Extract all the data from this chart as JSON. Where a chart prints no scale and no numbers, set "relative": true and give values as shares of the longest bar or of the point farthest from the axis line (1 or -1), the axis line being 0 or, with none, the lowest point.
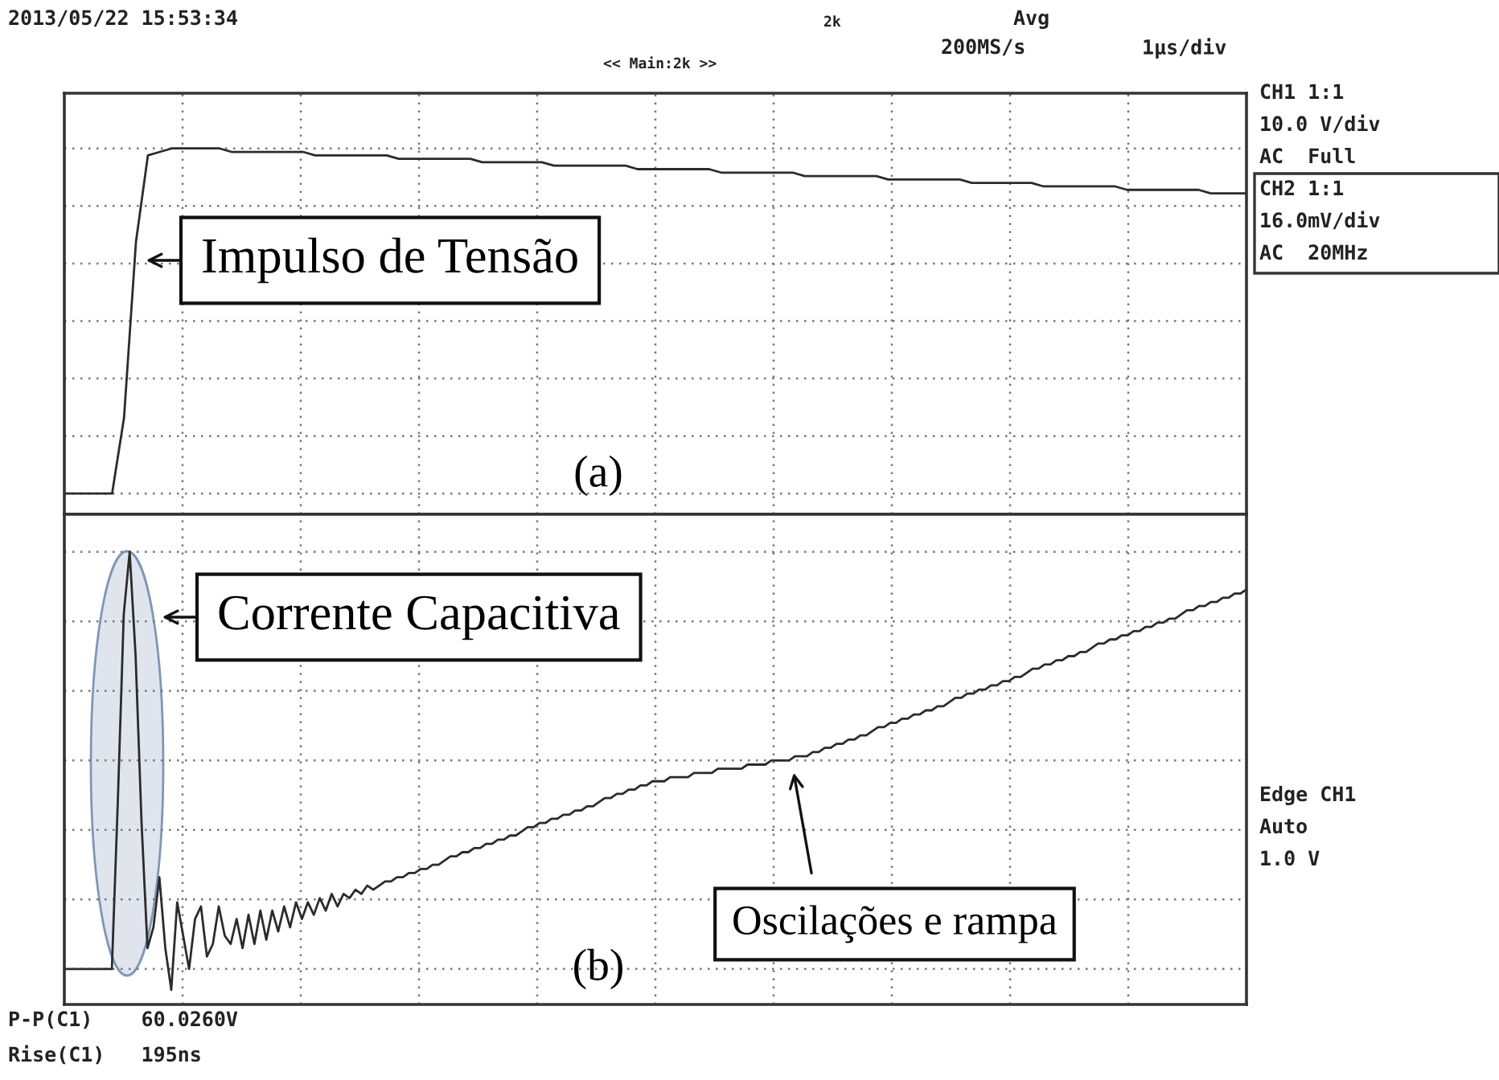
{
  "chart_data": [
    {
      "type": "line",
      "relative": true,
      "tick_labels": false,
      "grid": true,
      "legend": false,
      "marker": "none",
      "line_style": "solid",
      "categories": [
        null,
        null,
        null,
        null,
        null,
        null,
        null,
        null,
        null,
        null,
        null,
        null,
        null,
        null,
        null,
        null,
        null,
        null,
        null,
        null,
        null,
        null,
        null,
        null,
        null,
        null,
        null,
        null,
        null,
        null,
        null,
        null,
        null,
        null,
        null,
        null,
        null,
        null,
        null,
        null,
        null,
        null,
        null,
        null,
        null,
        null,
        null,
        null,
        null,
        null,
        null,
        null,
        null,
        null,
        null,
        null,
        null,
        null,
        null,
        null,
        null,
        null,
        null,
        null,
        null,
        null,
        null,
        null,
        null,
        null,
        null,
        null,
        null,
        null,
        null,
        null,
        null,
        null,
        null,
        null,
        null,
        null,
        null,
        null,
        null,
        null,
        null,
        null,
        null,
        null,
        null,
        null,
        null,
        null,
        null,
        null,
        null,
        null,
        null,
        null
      ],
      "series": [
        {
          "color": "#2b2b2b",
          "values": [
            0,
            0,
            0,
            0,
            0,
            0.22,
            0.73,
            0.98,
            0.99,
            1.0,
            1.0,
            1.0,
            1.0,
            1.0,
            0.99,
            0.99,
            0.99,
            0.99,
            0.99,
            0.99,
            0.99,
            0.98,
            0.98,
            0.98,
            0.98,
            0.98,
            0.98,
            0.98,
            0.97,
            0.97,
            0.97,
            0.97,
            0.97,
            0.97,
            0.97,
            0.96,
            0.96,
            0.96,
            0.96,
            0.96,
            0.96,
            0.95,
            0.95,
            0.95,
            0.95,
            0.95,
            0.95,
            0.95,
            0.94,
            0.94,
            0.94,
            0.94,
            0.94,
            0.94,
            0.94,
            0.93,
            0.93,
            0.93,
            0.93,
            0.93,
            0.93,
            0.93,
            0.92,
            0.92,
            0.92,
            0.92,
            0.92,
            0.92,
            0.92,
            0.91,
            0.91,
            0.91,
            0.91,
            0.91,
            0.91,
            0.91,
            0.9,
            0.9,
            0.9,
            0.9,
            0.9,
            0.9,
            0.89,
            0.89,
            0.89,
            0.89,
            0.89,
            0.89,
            0.89,
            0.88,
            0.88,
            0.88,
            0.88,
            0.88,
            0.88,
            0.88,
            0.87,
            0.87,
            0.87,
            0.87
          ]
        }
      ],
      "annotations": [
        "2013/05/22 15:53:34",
        "2k",
        "Avg",
        "200MS/s",
        "1µs/div",
        "<< Main:2k >>",
        "CH1 1:1",
        "10.0 V/div",
        "AC  Full",
        "CH2 1:1",
        "16.0mV/div",
        "AC  20MHz",
        "Impulso de Tensão",
        "(a)"
      ]
    },
    {
      "type": "line",
      "relative": true,
      "tick_labels": false,
      "grid": true,
      "legend": false,
      "marker": "none",
      "line_style": "solid",
      "categories": [
        null,
        null,
        null,
        null,
        null,
        null,
        null,
        null,
        null,
        null,
        null,
        null,
        null,
        null,
        null,
        null,
        null,
        null,
        null,
        null,
        null,
        null,
        null,
        null,
        null,
        null,
        null,
        null,
        null,
        null,
        null,
        null,
        null,
        null,
        null,
        null,
        null,
        null,
        null,
        null,
        null,
        null,
        null,
        null,
        null,
        null,
        null,
        null,
        null,
        null,
        null,
        null,
        null,
        null,
        null,
        null,
        null,
        null,
        null,
        null,
        null,
        null,
        null,
        null,
        null,
        null,
        null,
        null,
        null,
        null,
        null,
        null,
        null,
        null,
        null,
        null,
        null,
        null,
        null,
        null,
        null,
        null,
        null,
        null,
        null,
        null,
        null,
        null,
        null,
        null,
        null,
        null,
        null,
        null,
        null,
        null,
        null,
        null,
        null,
        null,
        null,
        null,
        null,
        null,
        null,
        null,
        null,
        null,
        null,
        null,
        null,
        null,
        null,
        null,
        null,
        null,
        null,
        null,
        null,
        null,
        null,
        null,
        null,
        null,
        null,
        null,
        null,
        null,
        null,
        null,
        null,
        null,
        null,
        null,
        null,
        null,
        null,
        null,
        null,
        null,
        null,
        null,
        null,
        null,
        null,
        null,
        null,
        null,
        null,
        null,
        null,
        null,
        null,
        null,
        null,
        null,
        null,
        null,
        null,
        null,
        null,
        null,
        null,
        null,
        null,
        null,
        null,
        null,
        null,
        null,
        null,
        null,
        null,
        null,
        null,
        null,
        null,
        null,
        null,
        null,
        null,
        null,
        null,
        null,
        null,
        null,
        null,
        null,
        null,
        null,
        null,
        null,
        null,
        null,
        null,
        null,
        null,
        null,
        null,
        null
      ],
      "series": [
        {
          "color": "#2b2b2b",
          "values": [
            0,
            0,
            0,
            0,
            0,
            0,
            0,
            0,
            0,
            0.4,
            0.85,
            1.0,
            0.75,
            0.35,
            0.05,
            0.1,
            0.22,
            0.05,
            -0.05,
            0.16,
            0.08,
            0,
            0.12,
            0.15,
            0.03,
            0.06,
            0.15,
            0.08,
            0.06,
            0.12,
            0.05,
            0.13,
            0.06,
            0.14,
            0.07,
            0.14,
            0.09,
            0.15,
            0.1,
            0.16,
            0.12,
            0.16,
            0.13,
            0.17,
            0.14,
            0.18,
            0.15,
            0.18,
            0.17,
            0.19,
            0.18,
            0.2,
            0.19,
            0.2,
            0.21,
            0.21,
            0.22,
            0.22,
            0.23,
            0.23,
            0.24,
            0.24,
            0.25,
            0.25,
            0.26,
            0.27,
            0.27,
            0.28,
            0.28,
            0.29,
            0.29,
            0.3,
            0.3,
            0.31,
            0.31,
            0.32,
            0.32,
            0.33,
            0.34,
            0.34,
            0.35,
            0.35,
            0.36,
            0.36,
            0.37,
            0.37,
            0.38,
            0.38,
            0.39,
            0.39,
            0.4,
            0.41,
            0.41,
            0.42,
            0.42,
            0.43,
            0.43,
            0.44,
            0.44,
            0.45,
            0.45,
            0.45,
            0.46,
            0.46,
            0.46,
            0.46,
            0.47,
            0.47,
            0.47,
            0.47,
            0.48,
            0.48,
            0.48,
            0.48,
            0.48,
            0.49,
            0.49,
            0.49,
            0.49,
            0.5,
            0.5,
            0.5,
            0.5,
            0.51,
            0.51,
            0.51,
            0.52,
            0.52,
            0.53,
            0.53,
            0.54,
            0.54,
            0.55,
            0.55,
            0.56,
            0.56,
            0.57,
            0.58,
            0.58,
            0.59,
            0.59,
            0.6,
            0.6,
            0.61,
            0.61,
            0.62,
            0.62,
            0.63,
            0.63,
            0.64,
            0.65,
            0.65,
            0.66,
            0.66,
            0.67,
            0.67,
            0.68,
            0.68,
            0.69,
            0.69,
            0.7,
            0.7,
            0.71,
            0.72,
            0.72,
            0.73,
            0.73,
            0.74,
            0.74,
            0.75,
            0.75,
            0.76,
            0.76,
            0.77,
            0.78,
            0.78,
            0.79,
            0.79,
            0.8,
            0.8,
            0.81,
            0.81,
            0.82,
            0.82,
            0.83,
            0.83,
            0.84,
            0.84,
            0.85,
            0.86,
            0.86,
            0.87,
            0.87,
            0.88,
            0.88,
            0.89,
            0.89,
            0.9,
            0.9,
            0.91
          ]
        }
      ],
      "annotations": [
        "Corrente Capacitiva",
        "Oscilações e rampa",
        "(b)",
        "Edge CH1",
        "Auto",
        "1.0 V",
        "P-P(C1)    60.0260V",
        "Rise(C1)   195ns"
      ]
    }
  ]
}
